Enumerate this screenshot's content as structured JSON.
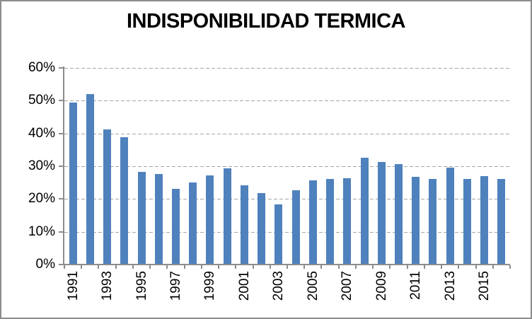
{
  "window": {
    "background": "#FFFFFF",
    "border_color": "#8C8C8C"
  },
  "chart_data": {
    "type": "bar",
    "title": "INDISPONIBILIDAD TERMICA",
    "xlabel": "",
    "ylabel": "",
    "categories": [
      "1991",
      "1992",
      "1993",
      "1994",
      "1995",
      "1996",
      "1997",
      "1998",
      "1999",
      "2000",
      "2001",
      "2002",
      "2003",
      "2004",
      "2005",
      "2006",
      "2007",
      "2008",
      "2009",
      "2010",
      "2011",
      "2012",
      "2013",
      "2014",
      "2015",
      "2016"
    ],
    "values": [
      49.5,
      52.0,
      41.2,
      38.9,
      28.3,
      27.6,
      23.2,
      25.0,
      27.2,
      29.4,
      24.1,
      21.8,
      18.4,
      22.6,
      25.6,
      26.1,
      26.4,
      32.5,
      31.3,
      30.7,
      26.8,
      26.2,
      29.6,
      26.1,
      27.0,
      26.1
    ],
    "ylim": [
      0,
      60
    ],
    "y_ticks": [
      {
        "label": "0%",
        "value": 0
      },
      {
        "label": "10%",
        "value": 10
      },
      {
        "label": "20%",
        "value": 20
      },
      {
        "label": "30%",
        "value": 30
      },
      {
        "label": "40%",
        "value": 40
      },
      {
        "label": "50%",
        "value": 50
      },
      {
        "label": "60%",
        "value": 60
      }
    ],
    "visible_x_tick_labels": [
      "1991",
      "1993",
      "1995",
      "1997",
      "1999",
      "2001",
      "2003",
      "2005",
      "2007",
      "2009",
      "2011",
      "2013",
      "2015"
    ],
    "x_label_every": 2,
    "grid": "horizontal-dashed",
    "legend": "none",
    "colors": {
      "bar": "#4F81BD",
      "gridline": "#A6A6A6",
      "axis": "#8C8C8C",
      "text": "#000000"
    }
  }
}
